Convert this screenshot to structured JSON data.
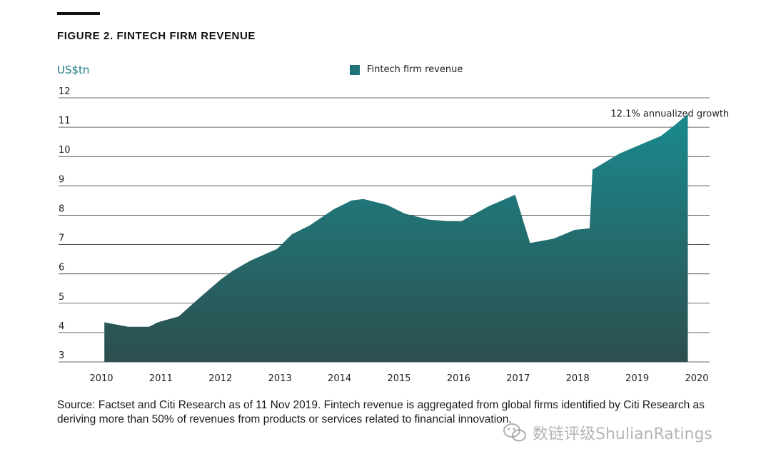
{
  "figure": {
    "title": "FIGURE 2. FINTECH FIRM REVENUE",
    "unit_label": "US$tn",
    "source": "Source: Factset and Citi Research as of 11 Nov 2019. Fintech revenue is aggregated from global firms identified by Citi Research as deriving more than 50% of revenues from products or services related to financial innovation."
  },
  "watermark": {
    "text": "数链评级ShulianRatings",
    "icon": "wechat-icon"
  },
  "colors": {
    "area_top": "#1a8a8e",
    "area_bottom": "#2d4e4e",
    "accent": "#1f7d83",
    "legend": "#1d7177"
  },
  "chart_data": {
    "type": "area",
    "ylabel": "US$tn",
    "ylim": [
      3,
      12
    ],
    "yticks": [
      3,
      4,
      5,
      6,
      7,
      8,
      9,
      10,
      11,
      12
    ],
    "xlim": [
      2010,
      2020
    ],
    "xticks": [
      "2010",
      "2011",
      "2012",
      "2013",
      "2014",
      "2015",
      "2016",
      "2017",
      "2018",
      "2019",
      "2020"
    ],
    "grid": true,
    "legend": {
      "placement": "top-center",
      "entries": [
        "Fintech firm revenue"
      ]
    },
    "annotations": [
      {
        "text": "12.1% annualized growth",
        "x": 2019.5,
        "y": 11.4
      }
    ],
    "series": [
      {
        "name": "Fintech firm revenue",
        "x": [
          2010.05,
          2010.45,
          2010.8,
          2010.95,
          2011.3,
          2011.6,
          2012.0,
          2012.2,
          2012.5,
          2012.95,
          2013.2,
          2013.5,
          2013.9,
          2014.2,
          2014.4,
          2014.8,
          2015.1,
          2015.5,
          2015.8,
          2016.05,
          2016.5,
          2016.95,
          2017.2,
          2017.6,
          2017.95,
          2018.2,
          2018.25,
          2018.7,
          2019.05,
          2019.4,
          2019.65,
          2019.85
        ],
        "y": [
          4.35,
          4.2,
          4.2,
          4.35,
          4.55,
          5.1,
          5.8,
          6.1,
          6.45,
          6.85,
          7.35,
          7.65,
          8.2,
          8.5,
          8.55,
          8.35,
          8.05,
          7.85,
          7.8,
          7.8,
          8.3,
          8.7,
          7.05,
          7.2,
          7.5,
          7.55,
          9.55,
          10.1,
          10.4,
          10.7,
          11.1,
          11.45
        ]
      }
    ]
  }
}
